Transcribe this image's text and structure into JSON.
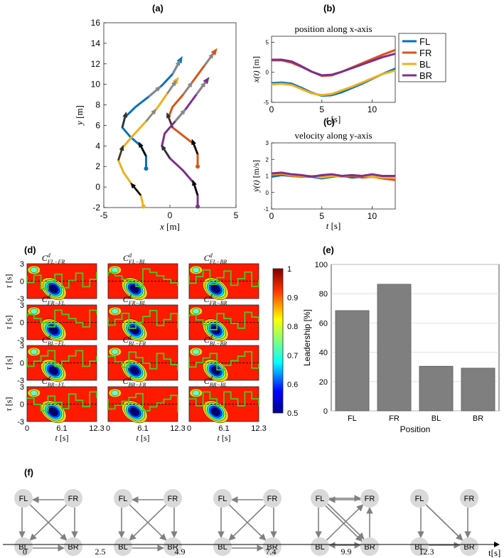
{
  "panel_labels": {
    "a": "(a)",
    "b": "(b)",
    "c": "(c)",
    "d": "(d)",
    "e": "(e)",
    "f": "(f)"
  },
  "colors": {
    "FL": "#0072BD",
    "FR": "#D95319",
    "BL": "#EDB120",
    "BR": "#7E2F8E",
    "bar": "#7f7f7f",
    "arrow": "#808080",
    "node": "#d9d9d9",
    "contour_line": "#44cc22"
  },
  "chart_data": [
    {
      "id": "a",
      "type": "line",
      "title": "",
      "xlabel_var": "x",
      "xlabel_unit": "[m]",
      "ylabel_var": "y",
      "ylabel_unit": "[m]",
      "xlim": [
        -5,
        5
      ],
      "ylim": [
        -2,
        16
      ],
      "xticks": [
        "-5",
        "0",
        "5"
      ],
      "yticks": [
        "-2",
        "0",
        "2",
        "4",
        "6",
        "8",
        "10",
        "12",
        "14",
        "16"
      ],
      "series": [
        {
          "key": "FL",
          "x": [
            -1.8,
            -1.8,
            -2.2,
            -3.0,
            -3.6,
            -3.4,
            -2.6,
            -1.6,
            -0.6,
            0.2,
            0.8
          ],
          "y": [
            1.8,
            3.0,
            4.0,
            4.9,
            5.8,
            6.8,
            7.8,
            8.8,
            9.9,
            11.0,
            12.4
          ]
        },
        {
          "key": "FR",
          "x": [
            2.1,
            2.1,
            1.8,
            1.0,
            0.2,
            -0.1,
            0.2,
            1.0,
            1.8,
            2.6,
            3.4
          ],
          "y": [
            2.0,
            3.2,
            4.2,
            5.0,
            5.8,
            6.8,
            7.8,
            9.0,
            10.4,
            11.8,
            13.2
          ]
        },
        {
          "key": "BL",
          "x": [
            -2.0,
            -2.2,
            -2.9,
            -3.5,
            -3.9,
            -3.6,
            -2.8,
            -1.8,
            -0.9,
            -0.2,
            0.5
          ],
          "y": [
            -1.9,
            -0.8,
            0.3,
            1.4,
            2.6,
            3.8,
            5.0,
            6.4,
            7.8,
            9.1,
            10.4
          ]
        },
        {
          "key": "BR",
          "x": [
            2.1,
            2.1,
            1.8,
            1.0,
            0.0,
            -0.6,
            -0.4,
            0.4,
            1.2,
            2.0,
            2.8
          ],
          "y": [
            -1.9,
            -0.8,
            0.4,
            1.6,
            2.8,
            4.0,
            5.2,
            6.4,
            7.6,
            9.0,
            10.4
          ]
        }
      ]
    },
    {
      "id": "b",
      "type": "line",
      "title": "position along x-axis",
      "xlabel_var": "t",
      "xlabel_unit": "[s]",
      "ylabel_var": "x(t)",
      "ylabel_unit": "[m]",
      "xlim": [
        0,
        12.3
      ],
      "ylim": [
        -5,
        6
      ],
      "xticks": [
        0,
        5,
        10
      ],
      "yticks": [
        -5,
        0,
        5
      ],
      "x": [
        0,
        1,
        2,
        3,
        4,
        5,
        6,
        7,
        8,
        9,
        10,
        11,
        12.3
      ],
      "series": [
        {
          "key": "FL",
          "values": [
            -1.8,
            -1.7,
            -1.9,
            -2.6,
            -3.4,
            -3.9,
            -3.8,
            -3.3,
            -2.6,
            -1.9,
            -1.1,
            -0.3,
            0.6
          ]
        },
        {
          "key": "FR",
          "values": [
            2.0,
            2.0,
            1.6,
            0.9,
            0.1,
            -0.6,
            -0.5,
            0.1,
            0.8,
            1.5,
            2.2,
            2.9,
            3.7
          ]
        },
        {
          "key": "BL",
          "values": [
            -2.0,
            -1.9,
            -2.1,
            -2.8,
            -3.5,
            -3.8,
            -3.6,
            -3.0,
            -2.4,
            -1.7,
            -1.0,
            -0.3,
            0.3
          ]
        },
        {
          "key": "BR",
          "values": [
            2.1,
            2.1,
            1.8,
            1.0,
            0.1,
            -0.5,
            -0.4,
            0.1,
            0.7,
            1.3,
            1.9,
            2.5,
            3.1
          ]
        }
      ]
    },
    {
      "id": "c",
      "type": "line",
      "title": "velocity along y-axis",
      "xlabel_var": "t",
      "xlabel_unit": "[s]",
      "ylabel_var": "ẏ(t)",
      "ylabel_unit": "[m/s]",
      "xlim": [
        0,
        12.3
      ],
      "ylim": [
        -1,
        3
      ],
      "xticks": [
        0,
        5,
        10
      ],
      "yticks": [
        -1,
        0,
        1,
        2,
        3
      ],
      "x": [
        0,
        1,
        2,
        3,
        4,
        5,
        6,
        7,
        8,
        9,
        10,
        11,
        12.3
      ],
      "series": [
        {
          "key": "FL",
          "values": [
            0.95,
            1.05,
            1.0,
            0.98,
            0.95,
            0.85,
            0.95,
            1.0,
            0.9,
            0.95,
            0.95,
            0.9,
            1.0
          ]
        },
        {
          "key": "FR",
          "values": [
            1.05,
            1.1,
            1.0,
            0.95,
            1.0,
            0.95,
            1.05,
            0.95,
            1.0,
            0.9,
            0.95,
            0.85,
            0.75
          ]
        },
        {
          "key": "BL",
          "values": [
            1.1,
            1.15,
            1.05,
            1.0,
            1.0,
            0.9,
            1.0,
            0.95,
            1.05,
            1.0,
            0.95,
            0.9,
            0.9
          ]
        },
        {
          "key": "BR",
          "values": [
            1.15,
            1.2,
            1.1,
            1.05,
            0.95,
            1.05,
            1.1,
            1.0,
            1.05,
            1.0,
            1.1,
            1.0,
            1.0
          ]
        }
      ],
      "legend": [
        "FL",
        "FR",
        "BL",
        "BR"
      ]
    },
    {
      "id": "d",
      "type": "heatmap",
      "ylabel_var": "τ",
      "ylabel_unit": "[s]",
      "xlabel_var": "t",
      "xlabel_unit": "[s]",
      "xticks": [
        "0",
        "6.1",
        "12.3"
      ],
      "yticks": [
        "3",
        "0",
        "-3"
      ],
      "colorbar_ticks": [
        "1",
        "0.9",
        "0.8",
        "0.7",
        "0.6",
        "0.5"
      ],
      "colorbar_range": [
        0.5,
        1
      ],
      "cells": [
        [
          "FL",
          "FR"
        ],
        [
          "FL",
          "BL"
        ],
        [
          "FL",
          "BR"
        ],
        [
          "FR",
          "FL"
        ],
        [
          "FR",
          "BL"
        ],
        [
          "FR",
          "BR"
        ],
        [
          "BL",
          "FL"
        ],
        [
          "BL",
          "FR"
        ],
        [
          "BL",
          "BR"
        ],
        [
          "BR",
          "FL"
        ],
        [
          "BR",
          "FR"
        ],
        [
          "BR",
          "BL"
        ]
      ]
    },
    {
      "id": "e",
      "type": "bar",
      "categories": [
        "FL",
        "FR",
        "BL",
        "BR"
      ],
      "values": [
        68.5,
        86.5,
        30.5,
        29.2
      ],
      "xlabel": "Position",
      "ylabel": "Leadership [%]",
      "ylim": [
        0,
        100
      ],
      "yticks": [
        0,
        20,
        40,
        60,
        80,
        100
      ],
      "grid": true
    },
    {
      "id": "f",
      "type": "diagram",
      "nodes": [
        "FL",
        "FR",
        "BL",
        "BR"
      ],
      "timeline_ticks": [
        "0",
        "2.5",
        "4.9",
        "7.4",
        "9.9",
        "12.3"
      ],
      "timeline_label": "t[s]",
      "graphs": [
        [
          [
            "FR",
            "FL"
          ],
          [
            "FR",
            "BL"
          ],
          [
            "FL",
            "BL"
          ],
          [
            "FR",
            "BR"
          ],
          [
            "FL",
            "BR"
          ],
          [
            "BL",
            "BR"
          ]
        ],
        [
          [
            "FR",
            "FL"
          ],
          [
            "FR",
            "BL"
          ],
          [
            "FL",
            "BL"
          ],
          [
            "FR",
            "BR"
          ],
          [
            "FL",
            "BR"
          ],
          [
            "BL",
            "BR"
          ]
        ],
        [
          [
            "FR",
            "FL"
          ],
          [
            "FR",
            "BL"
          ],
          [
            "FL",
            "BL"
          ],
          [
            "FR",
            "BR"
          ],
          [
            "FL",
            "BR"
          ],
          [
            "BL",
            "BR"
          ]
        ],
        [
          [
            "FR",
            "FL"
          ],
          [
            "FL",
            "FR"
          ],
          [
            "FL",
            "BL"
          ],
          [
            "FL",
            "BR"
          ],
          [
            "BL",
            "FR"
          ],
          [
            "BR",
            "BL"
          ],
          [
            "BL",
            "BR"
          ],
          [
            "BR",
            "FR"
          ],
          [
            "FL",
            "BR"
          ]
        ],
        [
          [
            "FL",
            "BL"
          ],
          [
            "FL",
            "BR"
          ],
          [
            "FR",
            "BR"
          ],
          [
            "BL",
            "BR"
          ],
          [
            "FL",
            "BR"
          ]
        ]
      ]
    }
  ]
}
